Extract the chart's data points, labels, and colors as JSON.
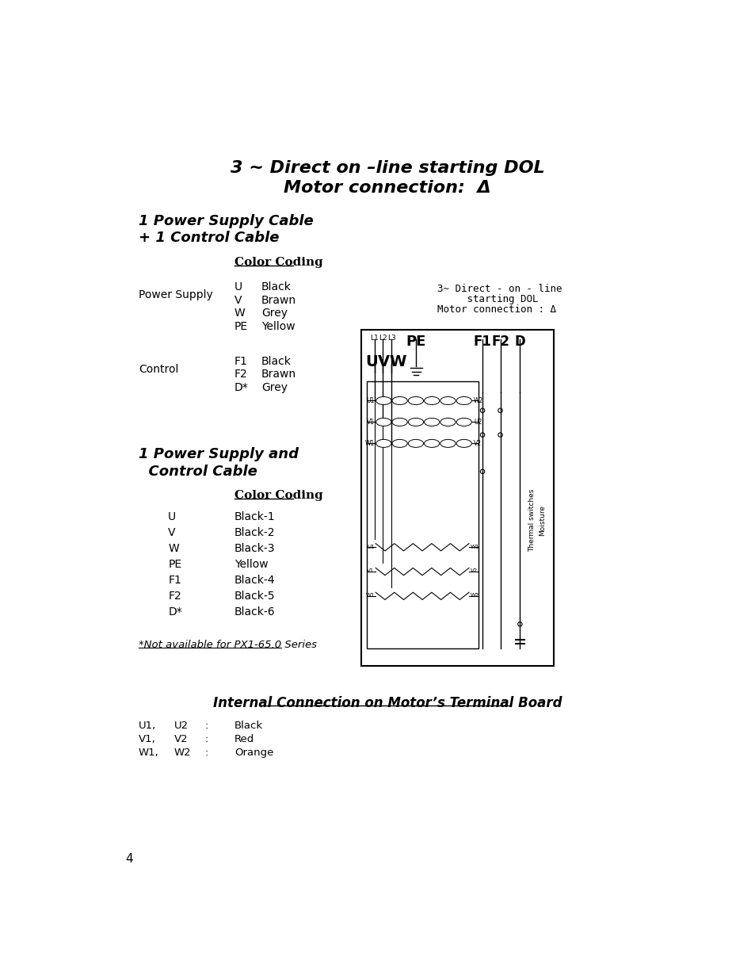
{
  "title_line1": "3 ~ Direct on –line starting DOL",
  "title_line2": "Motor connection:  Δ",
  "section1_title_line1": "1 Power Supply Cable",
  "section1_title_line2": "+ 1 Control Cable",
  "color_coding_label": "Color Coding",
  "power_supply_label": "Power Supply",
  "power_supply_rows": [
    [
      "U",
      "Black"
    ],
    [
      "V",
      "Brawn"
    ],
    [
      "W",
      "Grey"
    ],
    [
      "PE",
      "Yellow"
    ]
  ],
  "control_label": "Control",
  "control_rows": [
    [
      "F1",
      "Black"
    ],
    [
      "F2",
      "Brawn"
    ],
    [
      "D*",
      "Grey"
    ]
  ],
  "diagram_label_line1": "3~ Direct - on - line",
  "diagram_label_line2": "     starting DOL",
  "diagram_label_line3": "Motor connection : Δ",
  "section2_title_line1": "1 Power Supply and",
  "section2_title_line2": "  Control Cable",
  "color_coding_label2": "Color Coding",
  "section2_rows": [
    [
      "U",
      "Black-1"
    ],
    [
      "V",
      "Black-2"
    ],
    [
      "W",
      "Black-3"
    ],
    [
      "PE",
      "Yellow"
    ],
    [
      "F1",
      "Black-4"
    ],
    [
      "F2",
      "Black-5"
    ],
    [
      "D*",
      "Black-6"
    ]
  ],
  "footnote": "*Not available for PX1-65.0 Series",
  "section3_title": "Internal Connection on Motor’s Terminal Board",
  "section3_rows": [
    [
      "U1,",
      "U2",
      ":",
      "Black"
    ],
    [
      "V1,",
      "V2",
      ":",
      "Red"
    ],
    [
      "W1,",
      "W2",
      ":",
      "Orange"
    ]
  ],
  "page_number": "4",
  "bg_color": "#ffffff",
  "text_color": "#000000"
}
